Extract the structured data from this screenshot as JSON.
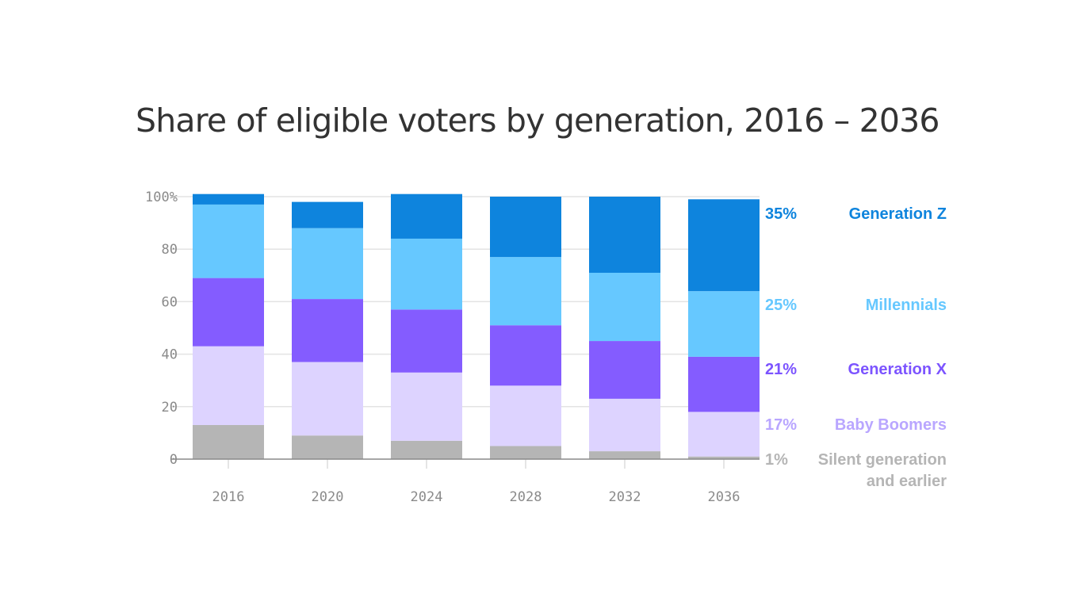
{
  "chart_data": {
    "type": "bar",
    "stacked": true,
    "title": "Share of eligible voters by generation, 2016 – 2036",
    "xlabel": "",
    "ylabel": "",
    "ylim": [
      0,
      100
    ],
    "yticks": [
      0,
      20,
      40,
      60,
      80,
      100
    ],
    "ytick_labels": [
      "0",
      "20",
      "40",
      "60",
      "80",
      "100%"
    ],
    "grid": true,
    "categories": [
      "2016",
      "2020",
      "2024",
      "2028",
      "2032",
      "2036"
    ],
    "series": [
      {
        "name": "Silent generation and earlier",
        "label_lines": [
          "Silent generation",
          "and earlier"
        ],
        "color": "#b5b5b5",
        "label_color": "#b5b5b5",
        "end_label": "1%",
        "values": [
          13,
          9,
          7,
          5,
          3,
          1
        ]
      },
      {
        "name": "Baby Boomers",
        "label_lines": [
          "Baby Boomers"
        ],
        "color": "#ddd3ff",
        "label_color": "#b9a6ff",
        "end_label": "17%",
        "values": [
          30,
          28,
          26,
          23,
          20,
          17
        ]
      },
      {
        "name": "Generation X",
        "label_lines": [
          "Generation X"
        ],
        "color": "#845cff",
        "label_color": "#7c54ff",
        "end_label": "21%",
        "values": [
          26,
          24,
          24,
          23,
          22,
          21
        ]
      },
      {
        "name": "Millennials",
        "label_lines": [
          "Millennials"
        ],
        "color": "#66c8ff",
        "label_color": "#66c8ff",
        "end_label": "25%",
        "values": [
          28,
          27,
          27,
          26,
          26,
          25
        ]
      },
      {
        "name": "Generation Z",
        "label_lines": [
          "Generation Z"
        ],
        "color": "#0e84dd",
        "label_color": "#0e84dd",
        "end_label": "35%",
        "values": [
          4,
          10,
          17,
          23,
          29,
          35
        ]
      }
    ],
    "legend": "right, aligned to last bar"
  }
}
